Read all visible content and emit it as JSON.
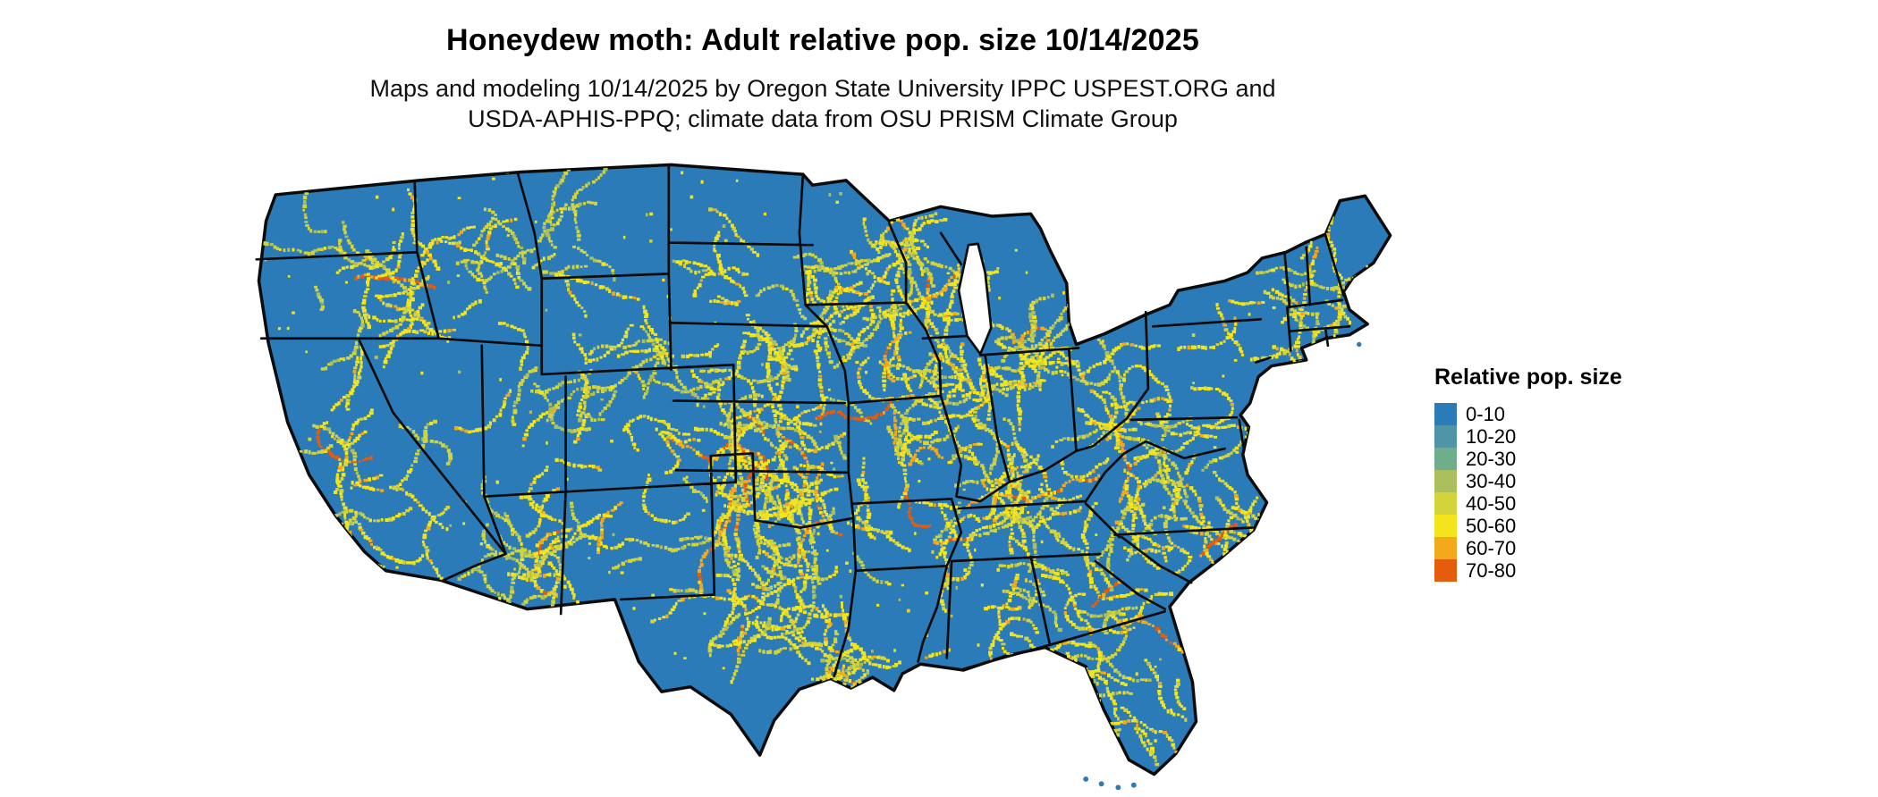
{
  "title": "Honeydew moth: Adult relative pop. size 10/14/2025",
  "subtitle_line1": "Maps and modeling 10/14/2025 by Oregon State University IPPC USPEST.ORG and",
  "subtitle_line2": "USDA-APHIS-PPQ; climate data from OSU PRISM Climate Group",
  "legend": {
    "title": "Relative pop. size",
    "items": [
      {
        "label": "0-10",
        "color": "#2b7bb9"
      },
      {
        "label": "10-20",
        "color": "#4e95a8"
      },
      {
        "label": "20-30",
        "color": "#6fae8d"
      },
      {
        "label": "30-40",
        "color": "#abc05c"
      },
      {
        "label": "40-50",
        "color": "#d3d33b"
      },
      {
        "label": "50-60",
        "color": "#f3e41c"
      },
      {
        "label": "60-70",
        "color": "#f4a81c"
      },
      {
        "label": "70-80",
        "color": "#e55c0c"
      }
    ]
  },
  "map": {
    "region": "Contiguous United States",
    "base_color": "#2b7bb9",
    "water_color": "#ffffff",
    "border_color": "#0b0b0b",
    "description": "Raster map: mostly low (blue) relative population with yellow-to-orange hotspots across the Plains, Midwest, Mid-South, Southeast, mountain West and Northeast coast"
  }
}
